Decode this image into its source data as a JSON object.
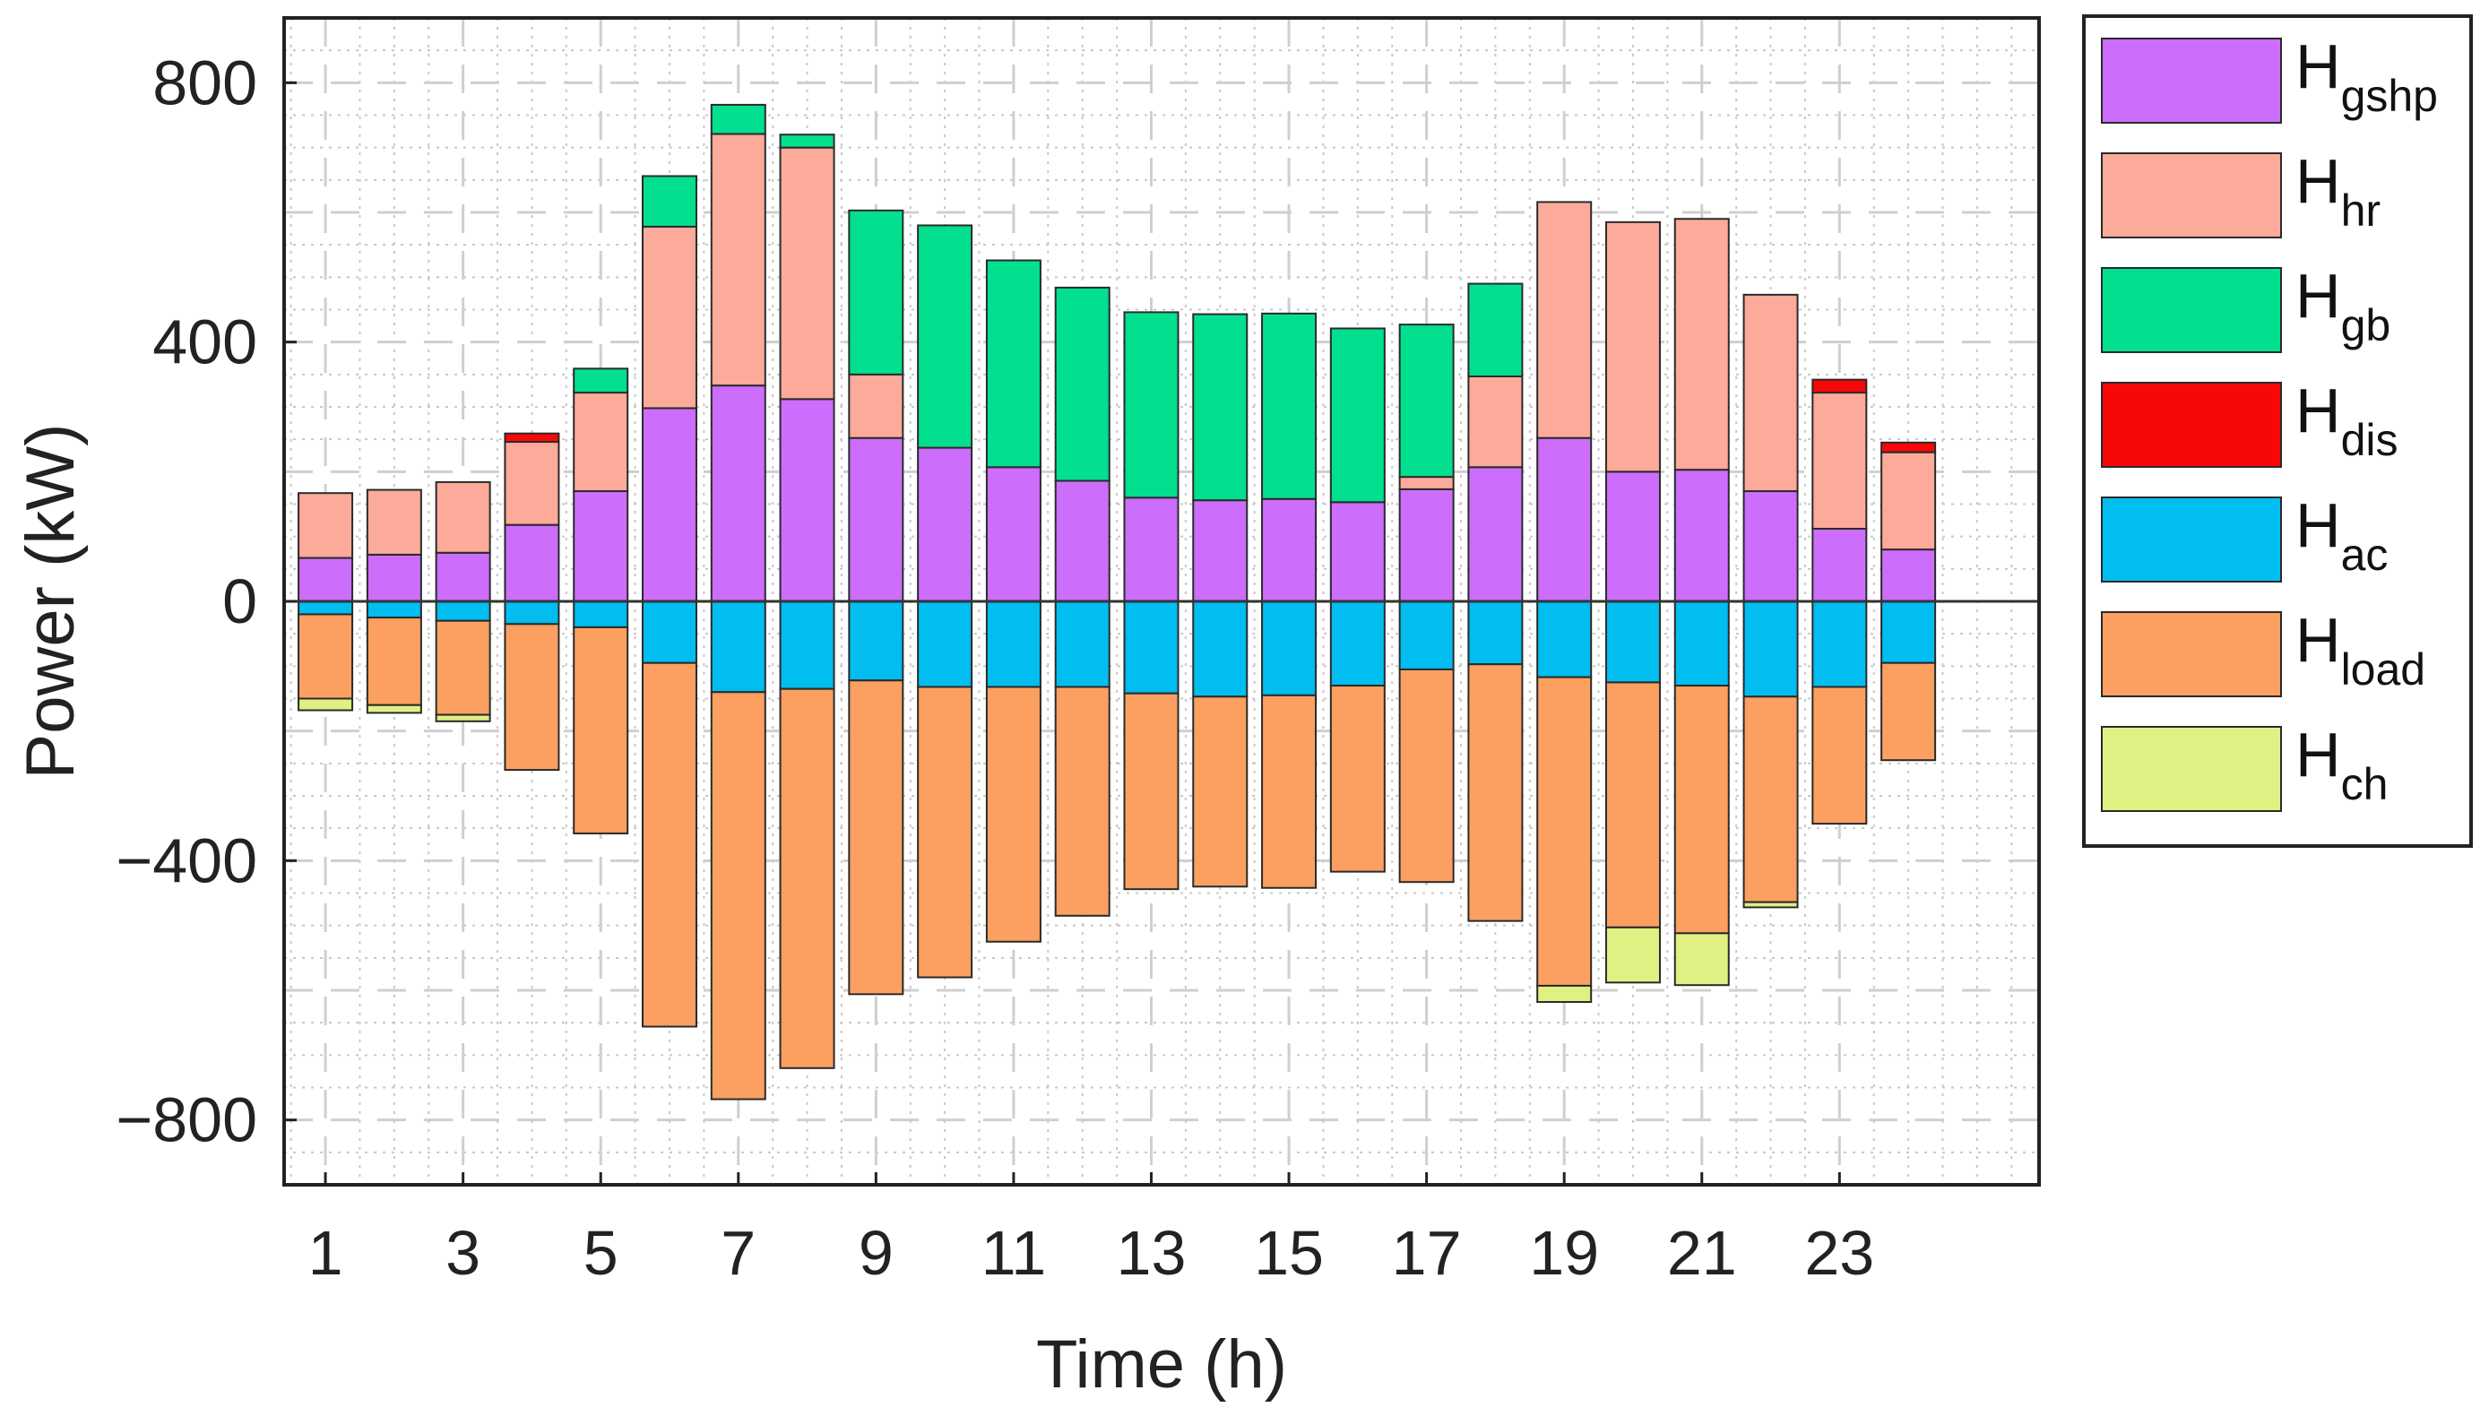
{
  "chart_data": {
    "type": "bar",
    "stacked": true,
    "title": "",
    "xlabel": "Time (h)",
    "ylabel": "Power (kW)",
    "ylim": [
      -900,
      900
    ],
    "yticks": [
      -800,
      -400,
      0,
      400,
      800
    ],
    "ytick_labels": [
      "−800",
      "−400",
      "0",
      "400",
      "800"
    ],
    "xlim": [
      0.4,
      25.9
    ],
    "xticks": [
      1,
      3,
      5,
      7,
      9,
      11,
      13,
      15,
      17,
      19,
      21,
      23
    ],
    "xtick_labels": [
      "1",
      "3",
      "5",
      "7",
      "9",
      "11",
      "13",
      "15",
      "17",
      "19",
      "21",
      "23"
    ],
    "grid": true,
    "legend_position": "outside-right",
    "x": [
      1,
      2,
      3,
      4,
      5,
      6,
      7,
      8,
      9,
      10,
      11,
      12,
      13,
      14,
      15,
      16,
      17,
      18,
      19,
      20,
      21,
      22,
      23,
      24
    ],
    "series": [
      {
        "name": "H",
        "sub": "gshp",
        "color": "#cc6dfc",
        "side": "positive",
        "values": [
          67,
          72,
          75,
          118,
          170,
          298,
          333,
          312,
          252,
          237,
          207,
          186,
          160,
          156,
          158,
          153,
          173,
          207,
          252,
          200,
          203,
          170,
          112,
          80
        ]
      },
      {
        "name": "H",
        "sub": "hr",
        "color": "#fcaa99",
        "side": "positive",
        "values": [
          100,
          100,
          109,
          128,
          152,
          280,
          388,
          388,
          98,
          0,
          0,
          0,
          0,
          0,
          0,
          0,
          19,
          140,
          364,
          385,
          387,
          303,
          210,
          150
        ]
      },
      {
        "name": "H",
        "sub": "gb",
        "color": "#02e08f",
        "side": "positive",
        "values": [
          0,
          0,
          0,
          0,
          37,
          78,
          45,
          20,
          253,
          343,
          319,
          298,
          286,
          287,
          286,
          268,
          235,
          143,
          0,
          0,
          0,
          0,
          0,
          0
        ]
      },
      {
        "name": "H",
        "sub": "dis",
        "color": "#f60808",
        "side": "positive",
        "values": [
          0,
          0,
          0,
          13,
          0,
          0,
          0,
          0,
          0,
          0,
          0,
          0,
          0,
          0,
          0,
          0,
          0,
          0,
          0,
          0,
          0,
          0,
          20,
          15
        ]
      },
      {
        "name": "H",
        "sub": "ac",
        "color": "#01bdf0",
        "side": "negative",
        "values": [
          -20,
          -25,
          -30,
          -35,
          -40,
          -95,
          -140,
          -135,
          -122,
          -132,
          -132,
          -132,
          -142,
          -147,
          -145,
          -130,
          -105,
          -97,
          -117,
          -125,
          -130,
          -147,
          -132,
          -95
        ]
      },
      {
        "name": "H",
        "sub": "load",
        "color": "#fba060",
        "side": "negative",
        "values": [
          -130,
          -135,
          -145,
          -225,
          -318,
          -561,
          -628,
          -585,
          -484,
          -448,
          -393,
          -353,
          -302,
          -293,
          -297,
          -287,
          -328,
          -396,
          -476,
          -378,
          -382,
          -317,
          -211,
          -150
        ]
      },
      {
        "name": "H",
        "sub": "ch",
        "color": "#e0f083",
        "side": "negative",
        "values": [
          -18,
          -12,
          -10,
          0,
          0,
          0,
          0,
          0,
          0,
          0,
          0,
          0,
          0,
          0,
          0,
          0,
          0,
          0,
          -25,
          -85,
          -80,
          -8,
          0,
          0
        ]
      }
    ]
  }
}
